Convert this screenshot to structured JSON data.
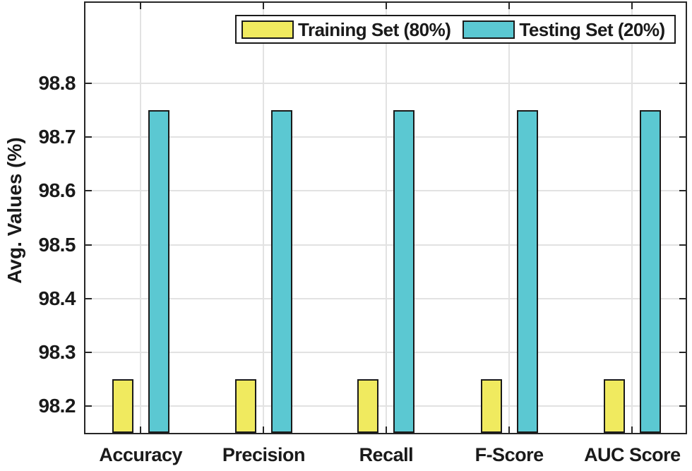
{
  "figure": {
    "background": "#ffffff",
    "axis_color": "#262626",
    "grid_color": "#E2E2E2",
    "bar_border_color": "#1A1A1A"
  },
  "chart_data": {
    "type": "bar",
    "title": "",
    "categories": [
      "Accuracy",
      "Precision",
      "Recall",
      "F-Score",
      "AUC Score"
    ],
    "series": [
      {
        "name": "Training Set (80%)",
        "color": "#F0EA5F",
        "values": [
          98.25,
          98.25,
          98.25,
          98.25,
          98.25
        ]
      },
      {
        "name": "Testing Set (20%)",
        "color": "#5BC8D2",
        "values": [
          98.75,
          98.75,
          98.75,
          98.75,
          98.75
        ]
      }
    ],
    "xlabel": "",
    "ylabel": "Avg. Values (%)",
    "ylim": [
      98.15,
      98.95
    ],
    "yticks": [
      98.2,
      98.3,
      98.4,
      98.5,
      98.6,
      98.7,
      98.8
    ],
    "ytick_decimals": 1,
    "grid": true,
    "legend_position": "top-center"
  }
}
